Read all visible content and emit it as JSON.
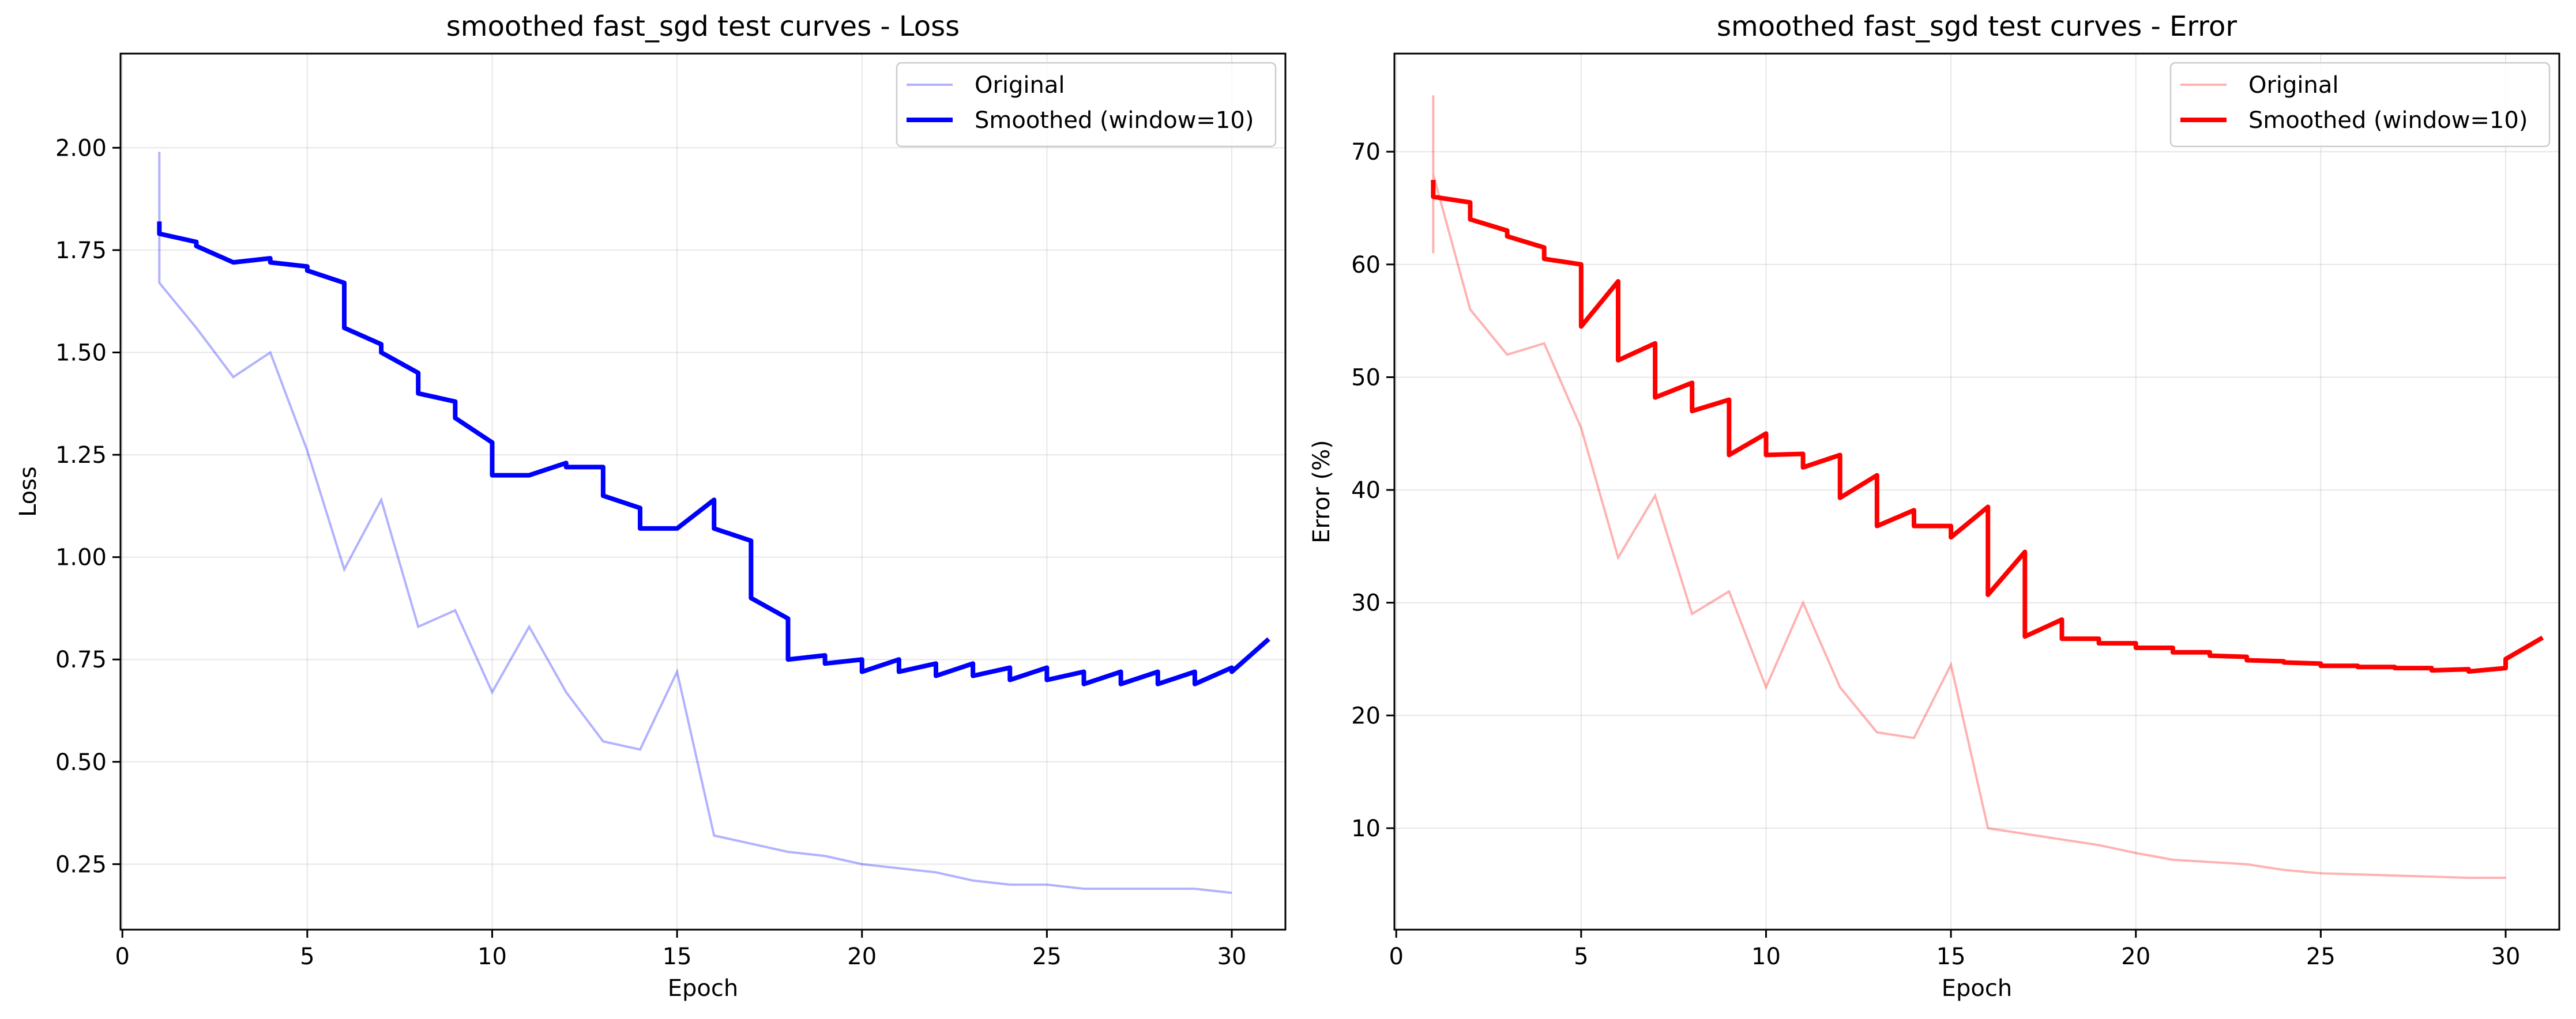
{
  "chart_data": [
    {
      "type": "line",
      "title": "smoothed fast_sgd test curves - Loss",
      "xlabel": "Epoch",
      "ylabel": "Loss",
      "xlim": [
        -0.05,
        31.45
      ],
      "ylim": [
        0.09,
        2.23
      ],
      "xticks": [
        0,
        5,
        10,
        15,
        20,
        25,
        30
      ],
      "yticks": [
        0.25,
        0.5,
        0.75,
        1.0,
        1.25,
        1.5,
        1.75,
        2.0
      ],
      "ytick_decimals": 2,
      "grid": true,
      "legend_position": "upper-right",
      "colors": {
        "original": "#0000ff",
        "smoothed": "#0000ff"
      },
      "series": [
        {
          "name": "Original",
          "start": [
            1.99,
            1.95,
            1.88,
            1.77,
            1.67
          ],
          "end": [
            1.56,
            1.44,
            1.5,
            1.26,
            0.97,
            1.14,
            0.83,
            0.87,
            0.67,
            0.83,
            0.67,
            0.55,
            0.53,
            0.72,
            0.32,
            0.3,
            0.28,
            0.27,
            0.25,
            0.24,
            0.23,
            0.21,
            0.2,
            0.2,
            0.19,
            0.19,
            0.19,
            0.19,
            0.18
          ]
        },
        {
          "name": "Smoothed (window=10)",
          "start": [
            1.82,
            1.79
          ],
          "end": [
            1.77,
            1.72,
            1.73,
            1.71,
            1.67,
            1.52,
            1.45,
            1.38,
            1.28,
            1.2,
            1.23,
            1.22,
            1.12,
            1.07,
            1.14,
            1.04,
            0.85,
            0.76,
            0.75,
            0.75,
            0.74,
            0.74,
            0.73,
            0.73,
            0.72,
            0.72,
            0.72,
            0.72,
            0.73,
            0.8
          ],
          "drop": [
            1.76,
            1.72,
            1.72,
            1.7,
            1.56,
            1.5,
            1.4,
            1.34,
            1.2,
            1.2,
            1.22,
            1.15,
            1.07,
            1.07,
            1.07,
            0.9,
            0.75,
            0.74,
            0.72,
            0.72,
            0.71,
            0.71,
            0.7,
            0.7,
            0.69,
            0.69,
            0.69,
            0.69,
            0.72
          ]
        }
      ]
    },
    {
      "type": "line",
      "title": "smoothed fast_sgd test curves - Error",
      "xlabel": "Epoch",
      "ylabel": "Error (%)",
      "xlim": [
        -0.05,
        31.45
      ],
      "ylim": [
        1.0,
        78.7
      ],
      "xticks": [
        0,
        5,
        10,
        15,
        20,
        25,
        30
      ],
      "yticks": [
        10,
        20,
        30,
        40,
        50,
        60,
        70
      ],
      "ytick_decimals": 0,
      "grid": true,
      "legend_position": "upper-right",
      "colors": {
        "original": "#ff0000",
        "smoothed": "#ff0000"
      },
      "series": [
        {
          "name": "Original",
          "start": [
            61,
            75,
            72,
            68
          ],
          "end": [
            56,
            52,
            53,
            45.5,
            34,
            39.5,
            29,
            31,
            22.5,
            30,
            22.5,
            18.5,
            18,
            24.5,
            10,
            9.5,
            9,
            8.5,
            7.8,
            7.2,
            7,
            6.8,
            6.3,
            6,
            5.9,
            5.8,
            5.7,
            5.6,
            5.6
          ]
        },
        {
          "name": "Smoothed (window=10)",
          "start": [
            67.5,
            66
          ],
          "end": [
            65.5,
            63,
            61.5,
            60,
            58.5,
            53,
            49.5,
            48,
            45,
            43.2,
            43.1,
            41.3,
            38.2,
            36.8,
            38.5,
            34.5,
            28.5,
            26.8,
            26.4,
            26,
            25.6,
            25.2,
            24.8,
            24.6,
            24.4,
            24.3,
            24.2,
            24.1,
            24.2,
            26.9
          ],
          "drop": [
            64,
            62.5,
            60.5,
            54.5,
            51.5,
            48.2,
            47,
            43.1,
            43.1,
            42,
            39.3,
            36.8,
            36.8,
            35.8,
            30.7,
            27,
            26.8,
            26.4,
            26,
            25.6,
            25.3,
            24.9,
            24.7,
            24.4,
            24.3,
            24.2,
            24,
            23.9,
            25
          ]
        }
      ]
    }
  ]
}
